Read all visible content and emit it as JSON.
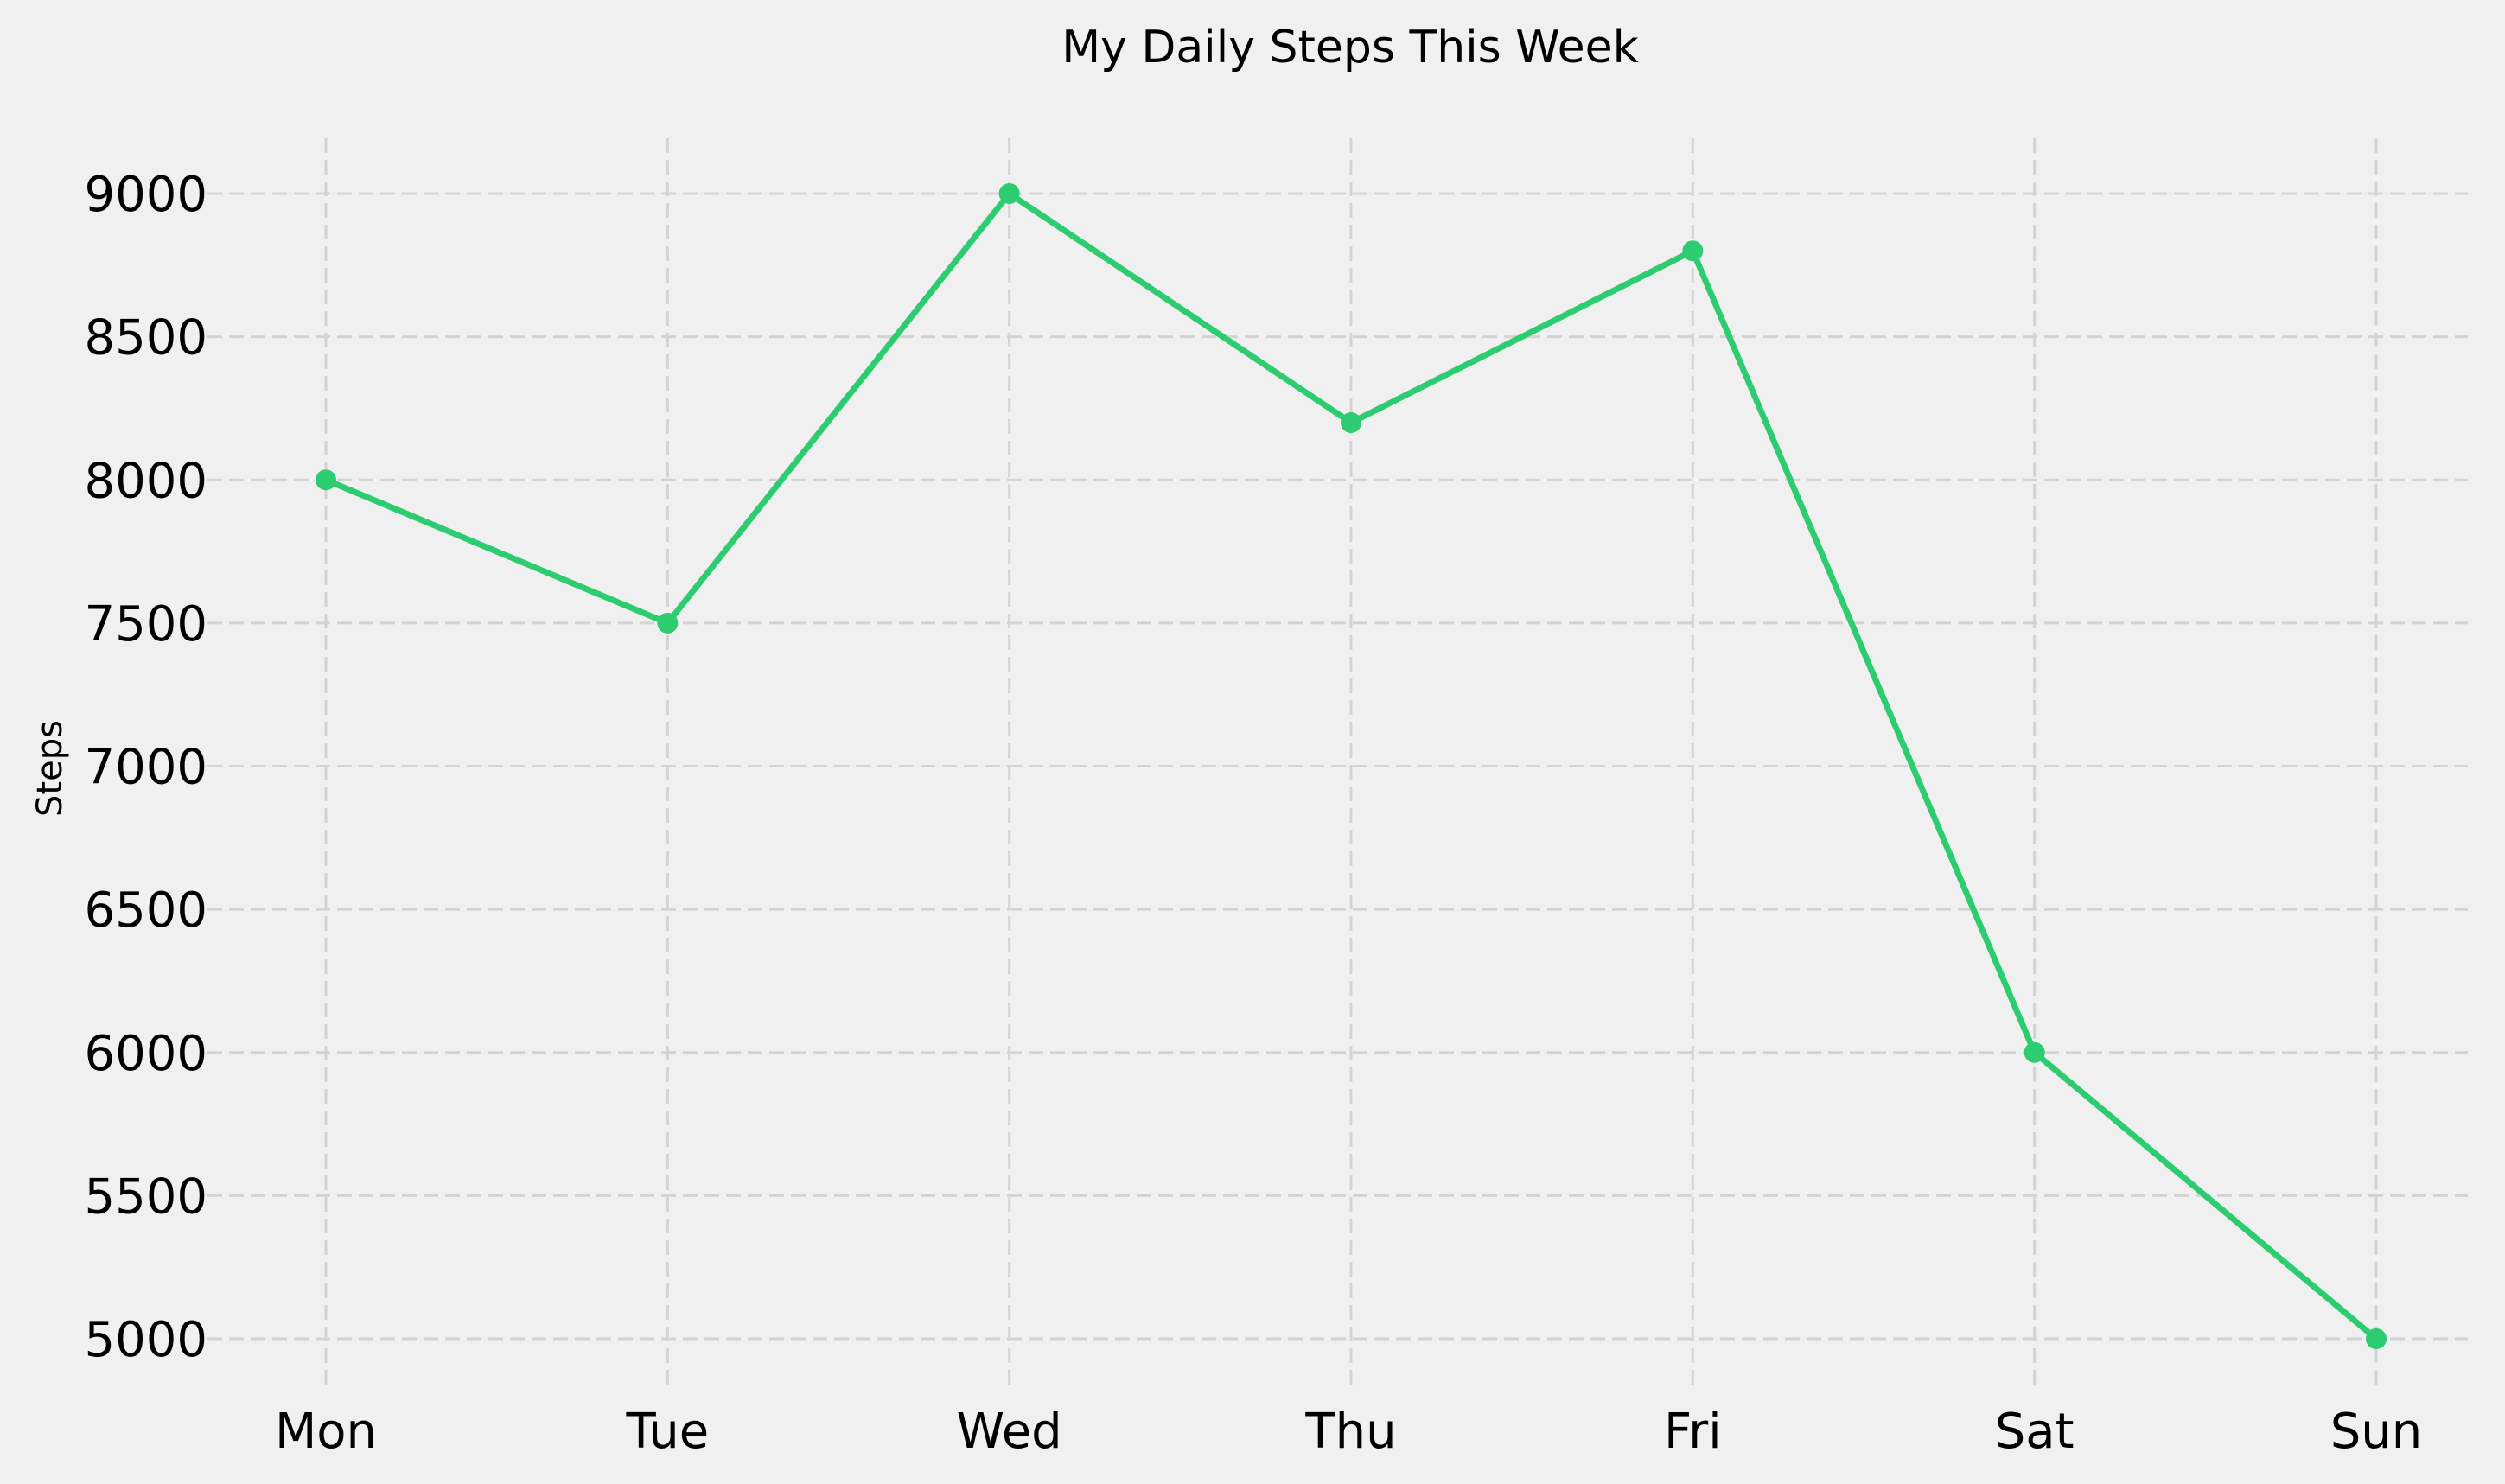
{
  "chart_data": {
    "type": "line",
    "title": "My Daily Steps This Week",
    "xlabel": "",
    "ylabel": "Steps",
    "categories": [
      "Mon",
      "Tue",
      "Wed",
      "Thu",
      "Fri",
      "Sat",
      "Sun"
    ],
    "series": [
      {
        "values": [
          8000,
          7500,
          9000,
          8200,
          8800,
          6000,
          5000
        ],
        "color": "#2ecc71",
        "marker": "circle"
      }
    ],
    "ylim": [
      4850,
      9200
    ],
    "yticks": [
      5000,
      5500,
      6000,
      6500,
      7000,
      7500,
      8000,
      8500,
      9000
    ],
    "grid": true,
    "legend": "none"
  }
}
